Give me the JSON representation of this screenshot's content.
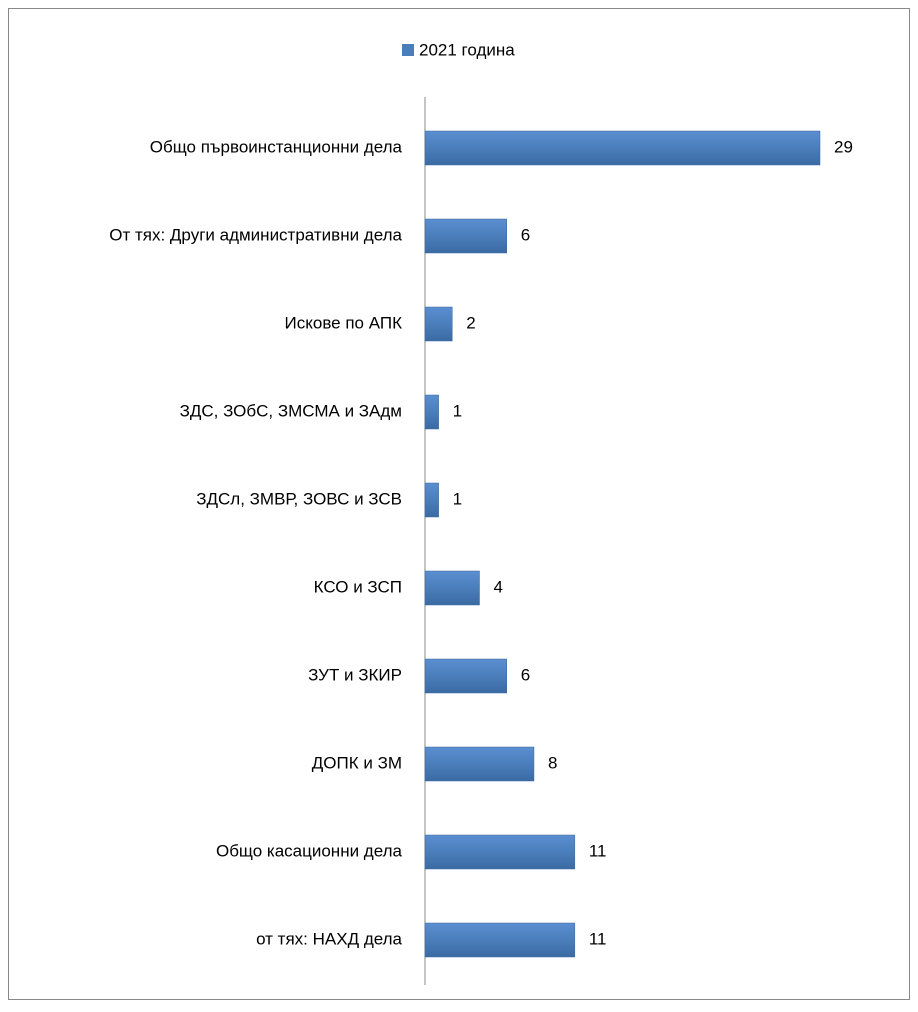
{
  "chart_data": {
    "type": "bar",
    "orientation": "horizontal",
    "categories": [
      "Общо първоинстанционни дела",
      "От тях: Други административни дела",
      "Искове по АПК",
      "ЗДС, ЗОбС, ЗМСМА и ЗАдм",
      "ЗДСл, ЗМВР, ЗОВС и ЗСВ",
      "КСО и ЗСП",
      "ЗУТ и ЗКИР",
      "ДОПК и ЗМ",
      "Общо касационни дела",
      "от тях: НАХД дела"
    ],
    "series": [
      {
        "name": "2021 година",
        "color": "#4a7ebb",
        "values": [
          29,
          6,
          2,
          1,
          1,
          4,
          6,
          8,
          11,
          11
        ]
      }
    ],
    "legend": "top"
  }
}
